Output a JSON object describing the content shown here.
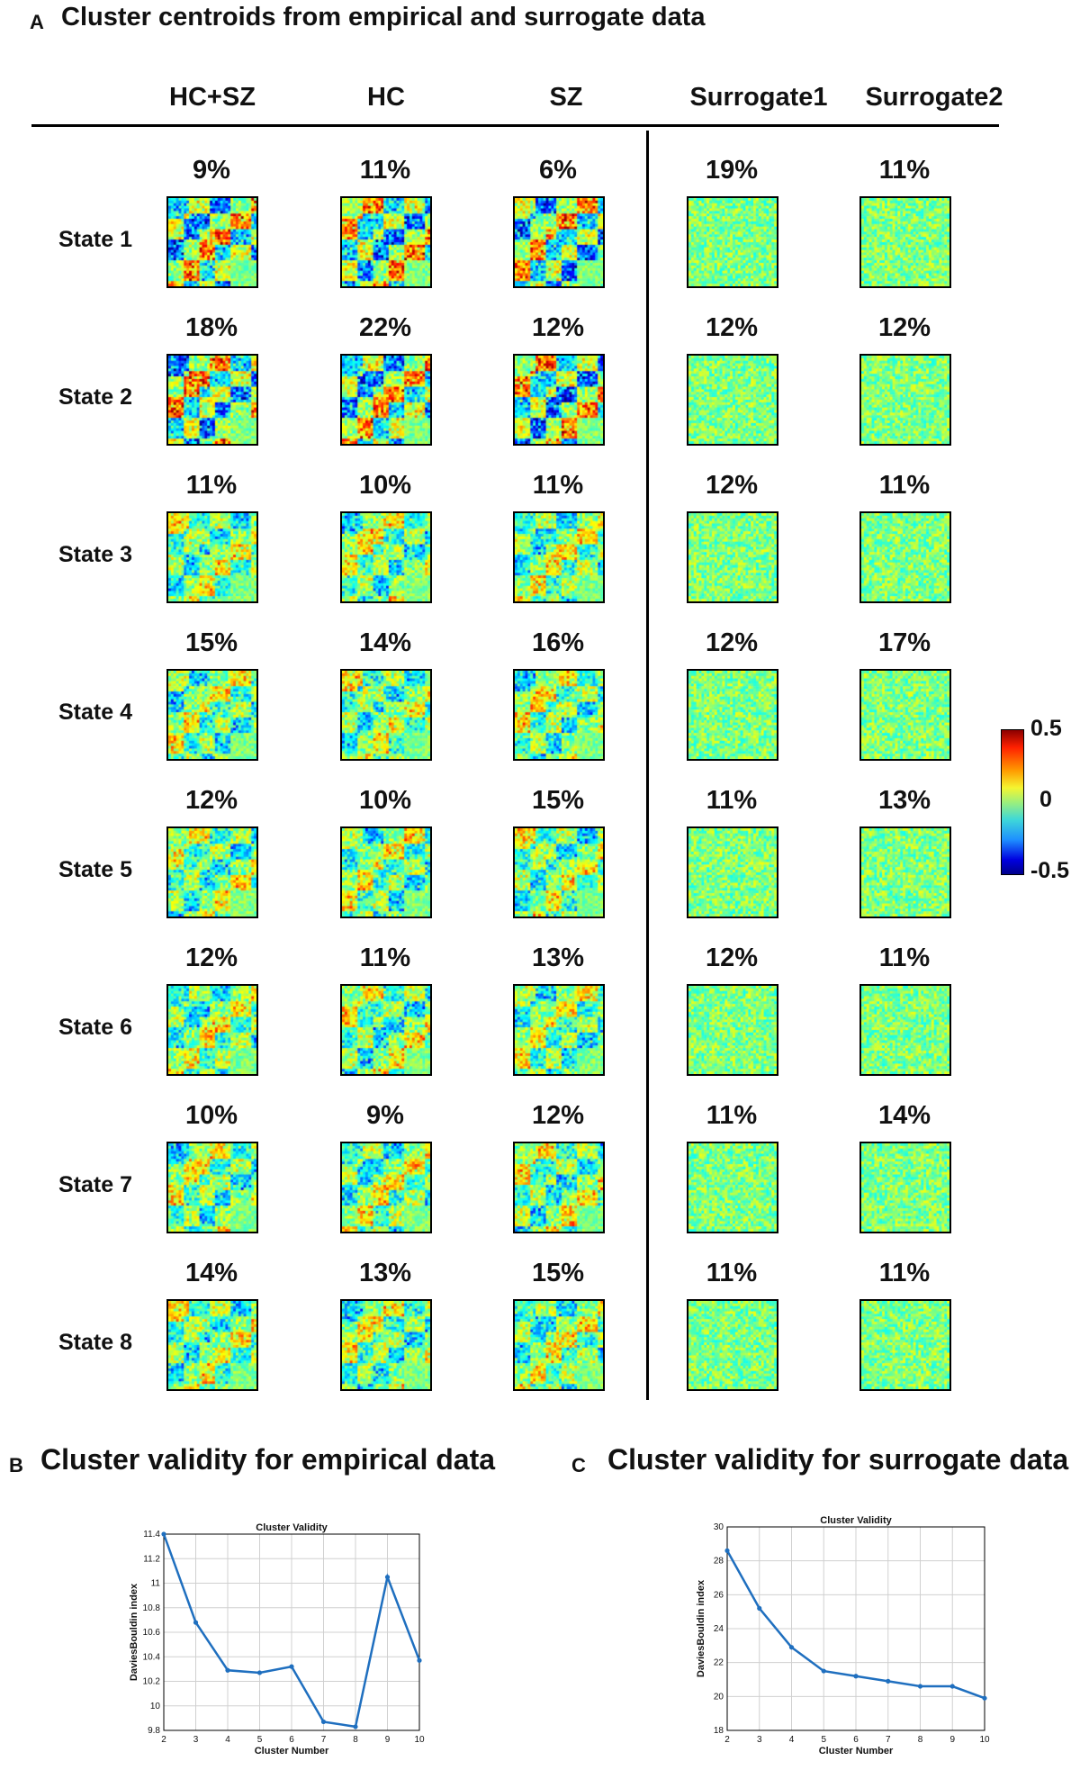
{
  "panel_a": {
    "letter": "A",
    "title": "Cluster centroids from empirical and surrogate data",
    "columns": [
      "HC+SZ",
      "HC",
      "SZ",
      "Surrogate1",
      "Surrogate2"
    ],
    "states": [
      {
        "label": "State 1",
        "pcts": [
          "9%",
          "11%",
          "6%",
          "19%",
          "11%"
        ]
      },
      {
        "label": "State 2",
        "pcts": [
          "18%",
          "22%",
          "12%",
          "12%",
          "12%"
        ]
      },
      {
        "label": "State 3",
        "pcts": [
          "11%",
          "10%",
          "11%",
          "12%",
          "11%"
        ]
      },
      {
        "label": "State 4",
        "pcts": [
          "15%",
          "14%",
          "16%",
          "12%",
          "17%"
        ]
      },
      {
        "label": "State 5",
        "pcts": [
          "12%",
          "10%",
          "15%",
          "11%",
          "13%"
        ]
      },
      {
        "label": "State 6",
        "pcts": [
          "12%",
          "11%",
          "13%",
          "12%",
          "11%"
        ]
      },
      {
        "label": "State 7",
        "pcts": [
          "10%",
          "9%",
          "12%",
          "11%",
          "14%"
        ]
      },
      {
        "label": "State 8",
        "pcts": [
          "14%",
          "13%",
          "15%",
          "11%",
          "11%"
        ]
      }
    ],
    "colorbar": {
      "max": "0.5",
      "mid": "0",
      "min": "-0.5"
    }
  },
  "panel_b": {
    "letter": "B",
    "title": "Cluster validity for empirical data"
  },
  "panel_c": {
    "letter": "C",
    "title": "Cluster validity for surrogate data"
  },
  "colors": {
    "line": "#1f6fbf",
    "grid": "#d0d0d0"
  },
  "chart_data": [
    {
      "type": "line",
      "title": "Cluster Validity",
      "xlabel": "Cluster Number",
      "ylabel": "DaviesBouldin index",
      "x": [
        2,
        3,
        4,
        5,
        6,
        7,
        8,
        9,
        10
      ],
      "series": [
        {
          "values": [
            11.4,
            10.68,
            10.29,
            10.27,
            10.32,
            9.87,
            9.83,
            11.05,
            10.37
          ]
        }
      ],
      "xlim": [
        2,
        10
      ],
      "ylim": [
        9.8,
        11.4
      ],
      "xticks": [
        "2",
        "3",
        "4",
        "5",
        "6",
        "7",
        "8",
        "9",
        "10"
      ],
      "yticks": [
        "9.8",
        "10",
        "10.2",
        "10.4",
        "10.6",
        "10.8",
        "11",
        "11.2",
        "11.4"
      ],
      "grid": true
    },
    {
      "type": "line",
      "title": "Cluster Validity",
      "xlabel": "Cluster Number",
      "ylabel": "DaviesBouldin index",
      "x": [
        2,
        3,
        4,
        5,
        6,
        7,
        8,
        9,
        10
      ],
      "series": [
        {
          "values": [
            28.6,
            25.2,
            22.9,
            21.5,
            21.2,
            20.9,
            20.6,
            20.6,
            19.9
          ]
        }
      ],
      "xlim": [
        2,
        10
      ],
      "ylim": [
        18,
        30
      ],
      "xticks": [
        "2",
        "3",
        "4",
        "5",
        "6",
        "7",
        "8",
        "9",
        "10"
      ],
      "yticks": [
        "18",
        "20",
        "22",
        "24",
        "26",
        "28",
        "30"
      ],
      "grid": true
    }
  ]
}
